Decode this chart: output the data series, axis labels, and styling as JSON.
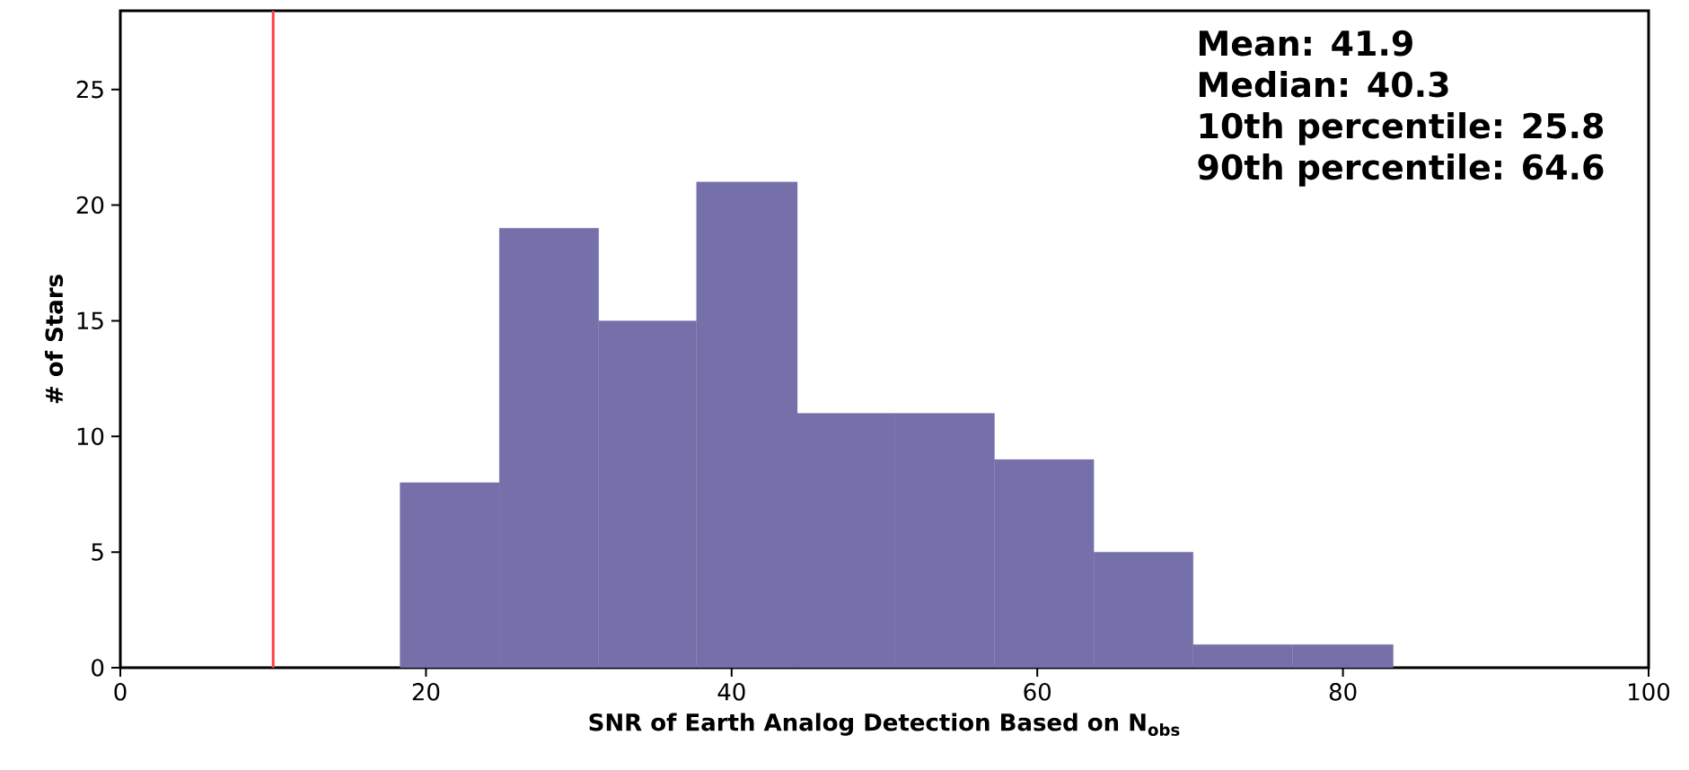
{
  "chart_data": {
    "type": "histogram",
    "xlabel": "SNR of Earth Analog Detection Based on N$_{obs}$",
    "ylabel": "# of Stars",
    "bins": [
      18.3,
      24.8,
      31.3,
      37.7,
      44.3,
      50.7,
      57.2,
      63.7,
      70.2,
      76.7,
      83.3
    ],
    "values": [
      8,
      19,
      15,
      21,
      11,
      11,
      9,
      5,
      1,
      1
    ],
    "color": "#7570aa",
    "xlim": [
      0,
      100
    ],
    "ylim": [
      0,
      28.4
    ],
    "xticks": [
      0,
      20,
      40,
      60,
      80,
      100
    ],
    "yticks": [
      0,
      5,
      10,
      15,
      20,
      25
    ],
    "ref_lines": [
      {
        "axis": "x",
        "value": 10,
        "color": "#ff4040"
      }
    ],
    "annotations": [
      "Mean: 41.9",
      "Median: 40.3",
      "10th percentile: 25.8",
      "90th percentile: 64.6"
    ],
    "grid": false
  }
}
